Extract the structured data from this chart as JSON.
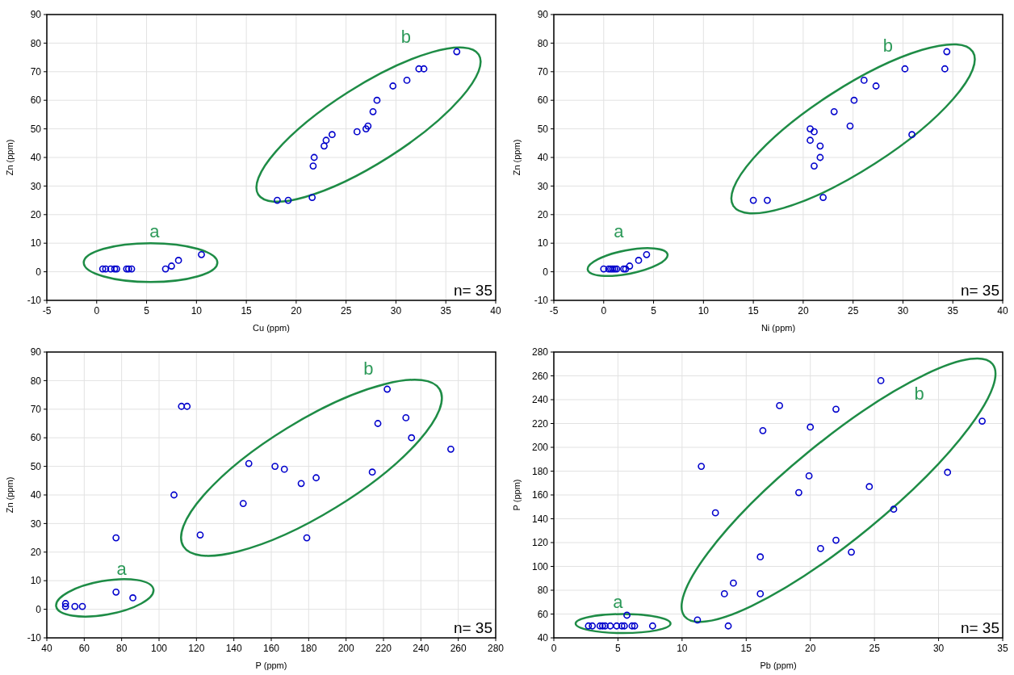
{
  "chart_data": [
    {
      "type": "scatter",
      "xlabel": "Cu (ppm)",
      "ylabel": "Zn (ppm)",
      "xlim": [
        -5,
        40
      ],
      "ylim": [
        -10,
        90
      ],
      "xticks": [
        -5,
        0,
        5,
        10,
        15,
        20,
        25,
        30,
        35,
        40
      ],
      "yticks": [
        -10,
        0,
        10,
        20,
        30,
        40,
        50,
        60,
        70,
        80,
        90
      ],
      "grid": true,
      "marker": "circle",
      "series": [
        {
          "color": "#0000cc",
          "x": [
            0.6,
            0.9,
            1.4,
            1.8,
            2.0,
            3.0,
            3.2,
            3.5,
            6.9,
            7.5,
            8.2,
            10.5,
            18.1,
            19.2,
            21.6,
            21.7,
            21.8,
            22.8,
            23.0,
            23.6,
            26.1,
            27.0,
            27.2,
            27.7,
            28.1,
            29.7,
            31.1,
            32.3,
            32.8,
            36.1
          ],
          "values": [
            1,
            1,
            1,
            1,
            1,
            1,
            1,
            1,
            1,
            2,
            4,
            6,
            25,
            25,
            26,
            37,
            40,
            44,
            46,
            48,
            49,
            50,
            51,
            56,
            60,
            65,
            67,
            71,
            71,
            77
          ]
        }
      ],
      "annotations": [
        "a",
        "b",
        "n= 35"
      ]
    },
    {
      "type": "scatter",
      "xlabel": "Ni (ppm)",
      "ylabel": "Zn (ppm)",
      "xlim": [
        -5,
        40
      ],
      "ylim": [
        -10,
        90
      ],
      "xticks": [
        -5,
        0,
        5,
        10,
        15,
        20,
        25,
        30,
        35,
        40
      ],
      "yticks": [
        -10,
        0,
        10,
        20,
        30,
        40,
        50,
        60,
        70,
        80,
        90
      ],
      "grid": true,
      "marker": "circle",
      "series": [
        {
          "color": "#0000cc",
          "x": [
            0,
            0.5,
            0.7,
            0.9,
            1.1,
            1.3,
            2.0,
            2.2,
            2.6,
            3.5,
            4.3,
            15,
            16.4,
            22,
            21.1,
            21.7,
            21.7,
            20.7,
            20.7,
            21.1,
            24.7,
            23.1,
            25.1,
            26.1,
            27.3,
            30.2,
            34.2,
            34.4,
            30.9
          ],
          "values": [
            1,
            1,
            1,
            1,
            1,
            1,
            1,
            1,
            2,
            4,
            6,
            25,
            25,
            26,
            37,
            40,
            44,
            46,
            50,
            49,
            51,
            56,
            60,
            67,
            65,
            71,
            71,
            77,
            48
          ]
        }
      ],
      "annotations": [
        "a",
        "b",
        "n= 35"
      ]
    },
    {
      "type": "scatter",
      "xlabel": "P (ppm)",
      "ylabel": "Zn (ppm)",
      "xlim": [
        40,
        280
      ],
      "ylim": [
        -10,
        90
      ],
      "xticks": [
        40,
        60,
        80,
        100,
        120,
        140,
        160,
        180,
        200,
        220,
        240,
        260,
        280
      ],
      "yticks": [
        -10,
        0,
        10,
        20,
        30,
        40,
        50,
        60,
        70,
        80,
        90
      ],
      "grid": true,
      "marker": "circle",
      "series": [
        {
          "color": "#0000cc",
          "x": [
            50,
            50,
            55,
            59,
            77,
            86,
            77,
            108,
            112,
            115,
            122,
            145,
            148,
            162,
            167,
            176,
            179,
            184,
            214,
            217,
            222,
            232,
            235,
            256
          ],
          "values": [
            2,
            1,
            1,
            1,
            6,
            4,
            25,
            40,
            71,
            71,
            26,
            37,
            51,
            50,
            49,
            44,
            25,
            46,
            48,
            65,
            77,
            67,
            60,
            56
          ]
        }
      ],
      "annotations": [
        "a",
        "b",
        "n= 35"
      ]
    },
    {
      "type": "scatter",
      "xlabel": "Pb (ppm)",
      "ylabel": "P (ppm)",
      "xlim": [
        0,
        35
      ],
      "ylim": [
        40,
        280
      ],
      "xticks": [
        0,
        5,
        10,
        15,
        20,
        25,
        30,
        35
      ],
      "yticks": [
        40,
        60,
        80,
        100,
        120,
        140,
        160,
        180,
        200,
        220,
        240,
        260,
        280
      ],
      "grid": true,
      "marker": "circle",
      "series": [
        {
          "color": "#0000cc",
          "x": [
            2.7,
            3.0,
            3.6,
            3.8,
            4.0,
            4.4,
            4.9,
            5.3,
            5.5,
            5.7,
            6.1,
            6.3,
            7.7,
            11.2,
            13.6,
            13.3,
            14.0,
            16.1,
            16.1,
            11.5,
            12.6,
            16.3,
            17.6,
            19.1,
            19.9,
            20.0,
            20.8,
            22.0,
            22.0,
            23.2,
            24.6,
            25.5,
            26.5,
            30.7,
            33.4
          ],
          "values": [
            50,
            50,
            50,
            50,
            50,
            50,
            50,
            50,
            50,
            59,
            50,
            50,
            50,
            55,
            50,
            77,
            86,
            77,
            108,
            184,
            145,
            214,
            235,
            162,
            176,
            217,
            115,
            122,
            232,
            112,
            167,
            256,
            148,
            179,
            222
          ]
        }
      ],
      "annotations": [
        "a",
        "b",
        "n= 35"
      ]
    }
  ]
}
